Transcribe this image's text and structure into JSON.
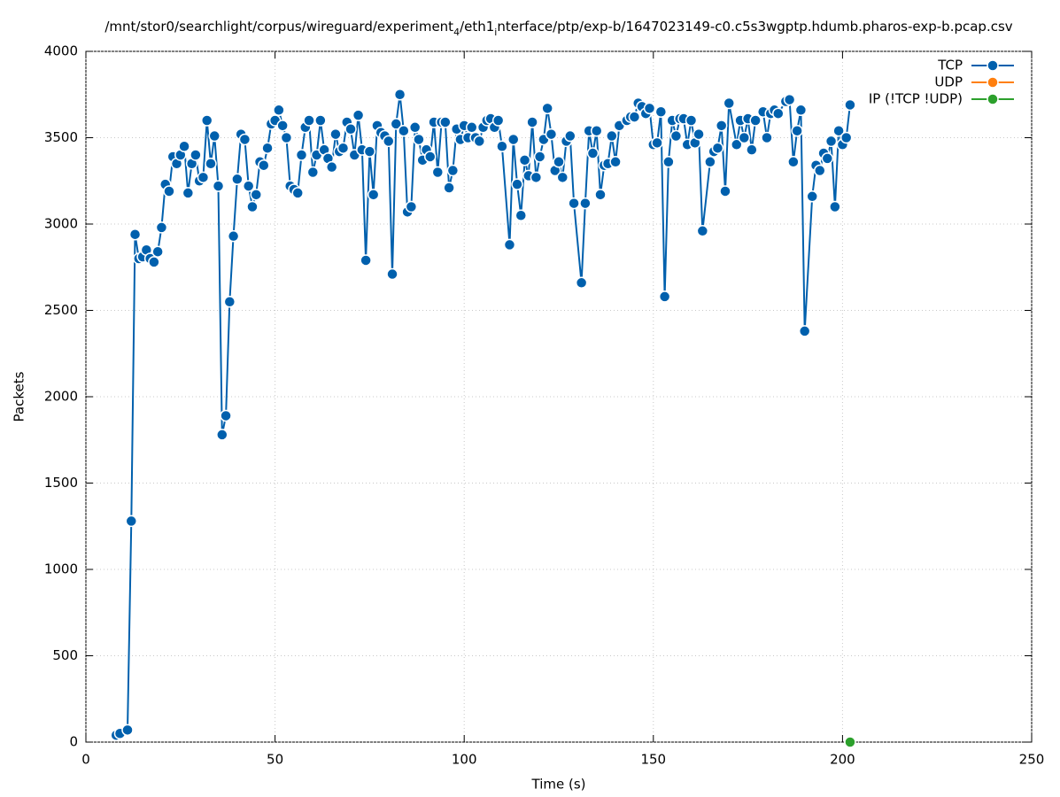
{
  "chart_data": {
    "type": "line",
    "title": [
      "/mnt/stor0/searchlight/corpus/wireguard/experiment",
      "4",
      "/eth1",
      "i",
      "nterface/ptp/exp-b/1647023149-c0.c5s3wgptp.hdumb.pharos-exp-b.pcap.csv"
    ],
    "x_label": "Time (s)",
    "y_label": "Packets",
    "xlim": [
      0,
      250
    ],
    "xticks": [
      0,
      50,
      100,
      150,
      200,
      250
    ],
    "ylim": [
      0,
      4000
    ],
    "yticks": [
      0,
      500,
      1000,
      1500,
      2000,
      2500,
      3000,
      3500,
      4000
    ],
    "grid": true,
    "legend": "top-right",
    "series": [
      {
        "name": "TCP",
        "color": "#0060ad",
        "x": [
          8,
          9,
          11,
          12,
          13,
          14,
          15,
          16,
          17,
          18,
          19,
          20,
          21,
          22,
          23,
          24,
          25,
          26,
          27,
          28,
          29,
          30,
          31,
          32,
          33,
          34,
          35,
          36,
          37,
          38,
          39,
          40,
          41,
          42,
          43,
          44,
          45,
          46,
          47,
          48,
          49,
          50,
          51,
          52,
          53,
          54,
          55,
          56,
          57,
          58,
          59,
          60,
          61,
          62,
          63,
          64,
          65,
          66,
          67,
          68,
          69,
          70,
          71,
          72,
          73,
          74,
          75,
          76,
          77,
          78,
          79,
          80,
          81,
          82,
          83,
          84,
          85,
          86,
          87,
          88,
          89,
          90,
          91,
          92,
          93,
          94,
          95,
          96,
          97,
          98,
          99,
          100,
          101,
          102,
          103,
          104,
          105,
          106,
          107,
          108,
          109,
          110,
          112,
          113,
          114,
          115,
          116,
          117,
          118,
          119,
          120,
          121,
          122,
          123,
          124,
          125,
          126,
          127,
          128,
          129,
          131,
          132,
          133,
          134,
          135,
          136,
          137,
          138,
          139,
          140,
          141,
          143,
          144,
          145,
          146,
          147,
          148,
          149,
          150,
          151,
          152,
          153,
          154,
          155,
          156,
          157,
          158,
          159,
          160,
          161,
          162,
          163,
          165,
          166,
          167,
          168,
          169,
          170,
          172,
          173,
          174,
          175,
          176,
          177,
          179,
          180,
          181,
          182,
          183,
          185,
          186,
          187,
          188,
          189,
          190,
          192,
          193,
          194,
          195,
          196,
          197,
          198,
          199,
          200,
          201,
          202
        ],
        "values": [
          40,
          50,
          70,
          1280,
          2940,
          2800,
          2810,
          2850,
          2800,
          2780,
          2840,
          2980,
          3230,
          3190,
          3390,
          3350,
          3400,
          3450,
          3180,
          3350,
          3400,
          3250,
          3270,
          3600,
          3350,
          3510,
          3220,
          1780,
          1890,
          2550,
          2930,
          3260,
          3520,
          3490,
          3220,
          3100,
          3170,
          3360,
          3340,
          3440,
          3580,
          3600,
          3660,
          3570,
          3500,
          3220,
          3200,
          3180,
          3400,
          3560,
          3600,
          3300,
          3400,
          3600,
          3430,
          3380,
          3330,
          3520,
          3420,
          3440,
          3590,
          3550,
          3400,
          3630,
          3430,
          2790,
          3420,
          3170,
          3570,
          3530,
          3510,
          3480,
          2710,
          3580,
          3750,
          3540,
          3070,
          3100,
          3560,
          3490,
          3370,
          3430,
          3390,
          3590,
          3300,
          3590,
          3590,
          3210,
          3310,
          3550,
          3490,
          3570,
          3500,
          3560,
          3500,
          3480,
          3560,
          3600,
          3610,
          3560,
          3600,
          3450,
          2880,
          3490,
          3230,
          3050,
          3370,
          3280,
          3590,
          3270,
          3390,
          3490,
          3670,
          3520,
          3310,
          3360,
          3270,
          3480,
          3510,
          3120,
          2660,
          3120,
          3540,
          3410,
          3540,
          3170,
          3340,
          3350,
          3510,
          3360,
          3570,
          3600,
          3620,
          3620,
          3700,
          3680,
          3640,
          3670,
          3460,
          3470,
          3650,
          2580,
          3360,
          3600,
          3510,
          3610,
          3610,
          3460,
          3600,
          3470,
          3520,
          2960,
          3360,
          3420,
          3440,
          3570,
          3190,
          3700,
          3460,
          3600,
          3500,
          3610,
          3430,
          3600,
          3650,
          3500,
          3640,
          3660,
          3640,
          3710,
          3720,
          3360,
          3540,
          3660,
          2380,
          3160,
          3340,
          3310,
          3410,
          3380,
          3480,
          3100,
          3540,
          3460,
          3500,
          3690
        ]
      },
      {
        "name": "UDP",
        "color": "#ff7f0e",
        "x": [],
        "values": []
      },
      {
        "name": "IP (!TCP  !UDP)",
        "color": "#2ca02c",
        "x": [
          202
        ],
        "values": [
          0
        ]
      }
    ]
  }
}
